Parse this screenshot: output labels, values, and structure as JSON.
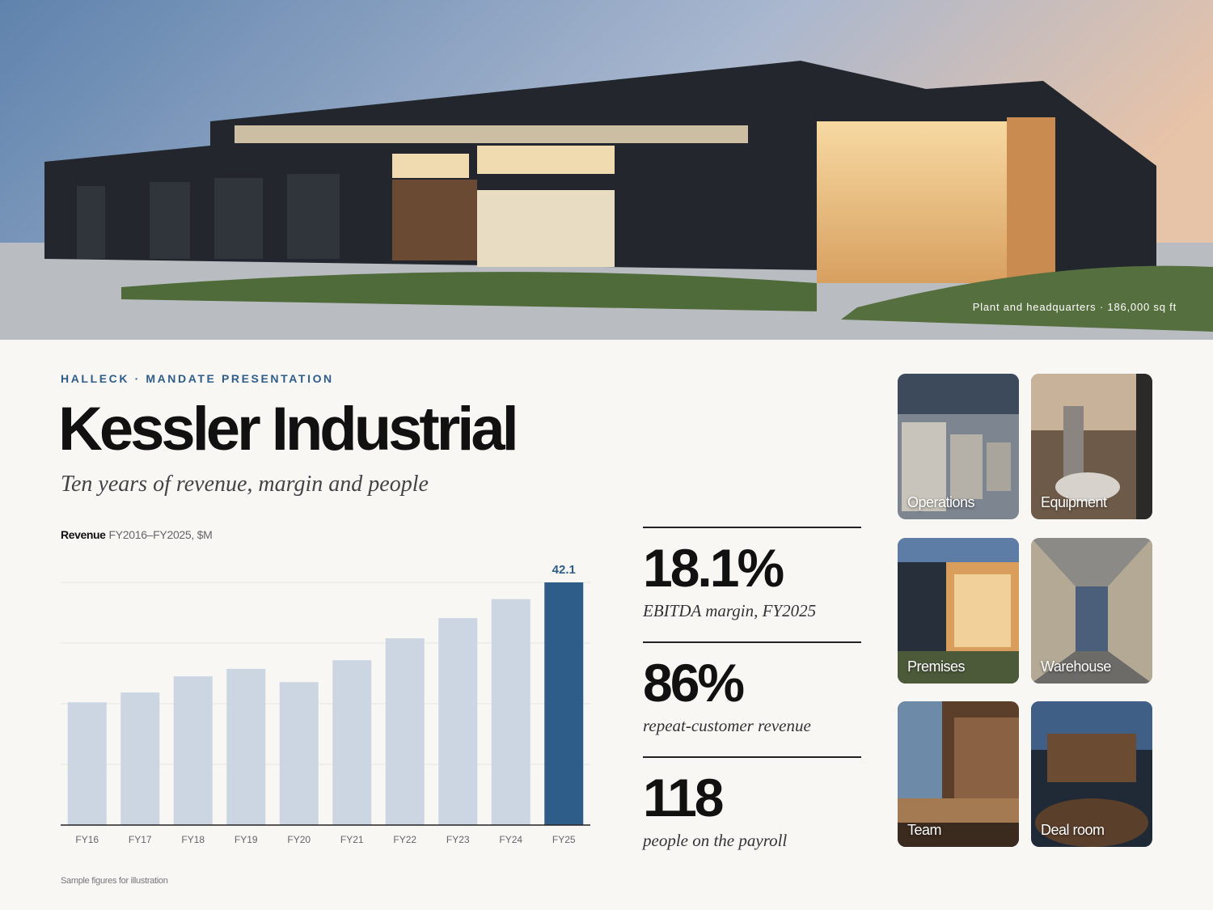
{
  "hero": {
    "caption": "Plant and headquarters · 186,000 sq ft"
  },
  "header": {
    "eyebrow": "HALLECK · MANDATE PRESENTATION",
    "title": "Kessler Industrial",
    "subtitle": "Ten years of revenue, margin and people"
  },
  "chart_data": {
    "type": "bar",
    "title": "Revenue",
    "subtitle": "FY2016–FY2025, $M",
    "categories": [
      "FY16",
      "FY17",
      "FY18",
      "FY19",
      "FY20",
      "FY21",
      "FY22",
      "FY23",
      "FY24",
      "FY25"
    ],
    "values": [
      21.3,
      23.0,
      25.8,
      27.1,
      24.8,
      28.6,
      32.4,
      35.9,
      39.2,
      42.1
    ],
    "value_labels": [
      null,
      null,
      null,
      null,
      null,
      null,
      null,
      null,
      null,
      "42.1"
    ],
    "colors": [
      "#cbd6e2",
      "#cbd6e2",
      "#cbd6e2",
      "#cbd6e2",
      "#cbd6e2",
      "#cbd6e2",
      "#cbd6e2",
      "#cbd6e2",
      "#cbd6e2",
      "#2f5d8a"
    ],
    "ylim": [
      0,
      42.1
    ],
    "grid": true
  },
  "stats": [
    {
      "value": "18.1%",
      "caption": "EBITDA margin, FY2025"
    },
    {
      "value": "86%",
      "caption": "repeat-customer revenue"
    },
    {
      "value": "118",
      "caption": "people on the payroll"
    }
  ],
  "tiles": [
    "Operations",
    "Equipment",
    "Premises",
    "Warehouse",
    "Team",
    "Deal room"
  ],
  "footnote": "Sample figures for illustration"
}
